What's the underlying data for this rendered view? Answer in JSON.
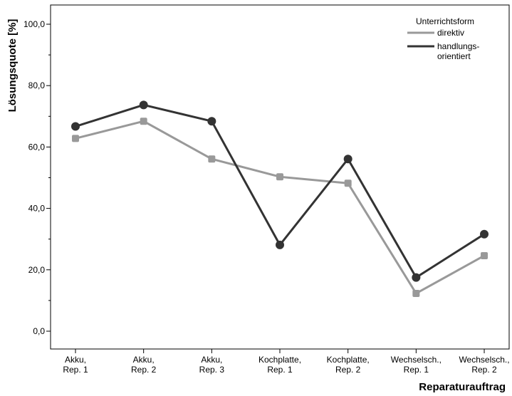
{
  "chart_data": {
    "type": "line",
    "title": "",
    "xlabel": "Reparaturauftrag",
    "ylabel": "Lösungsquote [%]",
    "ylim": [
      0,
      100
    ],
    "yticks": [
      "0,0",
      "20,0",
      "40,0",
      "60,0",
      "80,0",
      "100,0"
    ],
    "categories": [
      [
        "Akku,",
        "Rep. 1"
      ],
      [
        "Akku,",
        "Rep. 2"
      ],
      [
        "Akku,",
        "Rep. 3"
      ],
      [
        "Kochplatte,",
        "Rep. 1"
      ],
      [
        "Kochplatte,",
        "Rep. 2"
      ],
      [
        "Wechselsch.,",
        "Rep. 1"
      ],
      [
        "Wechselsch.,",
        "Rep. 2"
      ]
    ],
    "legend": {
      "title": "Unterrichtsform",
      "position": "top-right"
    },
    "series": [
      {
        "name": "direktiv",
        "name_lines": [
          "direktiv"
        ],
        "color": "#999999",
        "marker": "square",
        "values": [
          62.8,
          68.4,
          56.1,
          50.3,
          48.2,
          12.3,
          24.6
        ]
      },
      {
        "name": "handlungs-orientiert",
        "name_lines": [
          "handlungs-",
          "orientiert"
        ],
        "color": "#333333",
        "marker": "circle",
        "values": [
          66.7,
          73.7,
          68.4,
          28.1,
          56.1,
          17.5,
          31.6
        ]
      }
    ],
    "grid": false
  }
}
